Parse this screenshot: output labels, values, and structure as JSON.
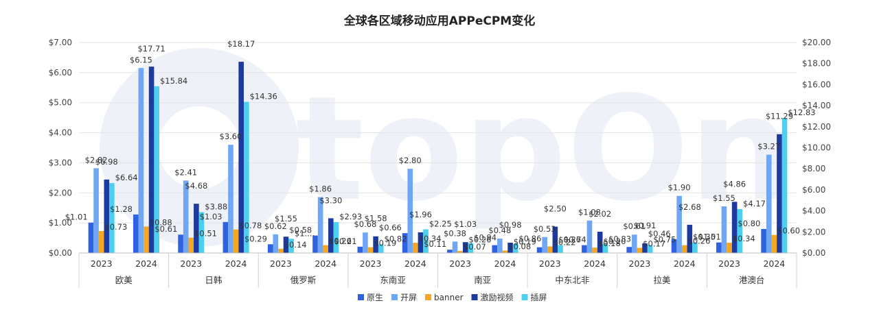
{
  "chart_data": {
    "type": "bar",
    "title": "全球各区域移动应用APPeCPM变化",
    "watermark": "topOn",
    "groups": [
      "欧美",
      "日韩",
      "俄罗斯",
      "东南亚",
      "南亚",
      "中东北非",
      "拉美",
      "港澳台"
    ],
    "years": [
      "2023",
      "2024"
    ],
    "y_left": {
      "min": 0,
      "max": 7,
      "ticks": [
        "$0.00",
        "$1.00",
        "$2.00",
        "$3.00",
        "$4.00",
        "$5.00",
        "$6.00",
        "$7.00"
      ]
    },
    "y_right": {
      "min": 0,
      "max": 20,
      "ticks": [
        "$0.00",
        "$2.00",
        "$4.00",
        "$6.00",
        "$8.00",
        "$10.00",
        "$12.00",
        "$14.00",
        "$16.00",
        "$18.00",
        "$20.00"
      ]
    },
    "legend_position": "bottom",
    "series": [
      {
        "name": "原生",
        "axis": "left",
        "color": "#2e62e0",
        "values": [
          1.01,
          1.28,
          0.61,
          1.03,
          0.29,
          0.58,
          0.21,
          0.66,
          0.11,
          0.26,
          0.19,
          0.26,
          0.2,
          0.46,
          0.35,
          0.8
        ],
        "labels": [
          "$1.01",
          "$1.28",
          "$0.61",
          "$1.03",
          "$0.29",
          "$0.58",
          "$0.21",
          "$0.66",
          "$0.11",
          "$0.26",
          "$0.19",
          "$0.26",
          "$0.20",
          "$0.46",
          "$0.35",
          "$0.80"
        ]
      },
      {
        "name": "开屏",
        "axis": "left",
        "color": "#6fa7f5",
        "values": [
          2.82,
          6.15,
          2.41,
          3.6,
          0.62,
          1.86,
          0.68,
          2.8,
          0.38,
          0.48,
          0.53,
          1.08,
          0.61,
          1.9,
          1.55,
          3.27
        ],
        "labels": [
          "$2.82",
          "$6.15",
          "$2.41",
          "$3.60",
          "$0.62",
          "$1.86",
          "$0.68",
          "$2.80",
          "$0.38",
          "$0.48",
          "$0.53",
          "$1.08",
          "$0.61",
          "$1.90",
          "$1.55",
          "$3.27"
        ]
      },
      {
        "name": "banner",
        "axis": "left",
        "color": "#f5a623",
        "values": [
          0.73,
          0.88,
          0.51,
          0.78,
          0.14,
          0.26,
          0.19,
          0.34,
          0.07,
          0.08,
          0.22,
          0.18,
          0.17,
          0.26,
          0.34,
          0.6
        ],
        "labels": [
          "$0.73",
          "$0.88",
          "$0.51",
          "$0.78",
          "$0.14",
          "$0.26",
          "$0.19",
          "$0.34",
          "$0.07",
          "$0.08",
          "$0.22",
          "$0.18",
          "$0.17",
          "$0.26",
          "$0.34",
          "$0.60"
        ]
      },
      {
        "name": "激励视频",
        "axis": "right",
        "color": "#1d3a9e",
        "values": [
          6.98,
          17.71,
          4.68,
          18.17,
          1.55,
          3.3,
          1.58,
          1.96,
          1.03,
          0.98,
          2.5,
          2.02,
          0.91,
          2.68,
          4.86,
          11.29
        ],
        "labels": [
          "$6.98",
          "$17.71",
          "$4.68",
          "$18.17",
          "$1.55",
          "$3.30",
          "$1.58",
          "$1.96",
          "$1.03",
          "$0.98",
          "$2.50",
          "$2.02",
          "$0.91",
          "$2.68",
          "$4.86",
          "$11.29"
        ]
      },
      {
        "name": "插屏",
        "axis": "right",
        "color": "#4dd0f0",
        "values": [
          6.64,
          15.84,
          3.88,
          14.36,
          1.35,
          2.93,
          0.82,
          2.25,
          0.94,
          0.86,
          0.74,
          0.83,
          0.75,
          1.01,
          4.17,
          12.83
        ],
        "labels": [
          "$6.64",
          "$15.84",
          "$3.88",
          "$14.36",
          "$1....",
          "$2.93",
          "$0.82",
          "$2.25",
          "$0.94",
          "$0.86",
          "$0.74",
          "$0.83",
          "$0.75",
          "$1.01",
          "$4.17",
          "$12.83"
        ]
      }
    ]
  }
}
